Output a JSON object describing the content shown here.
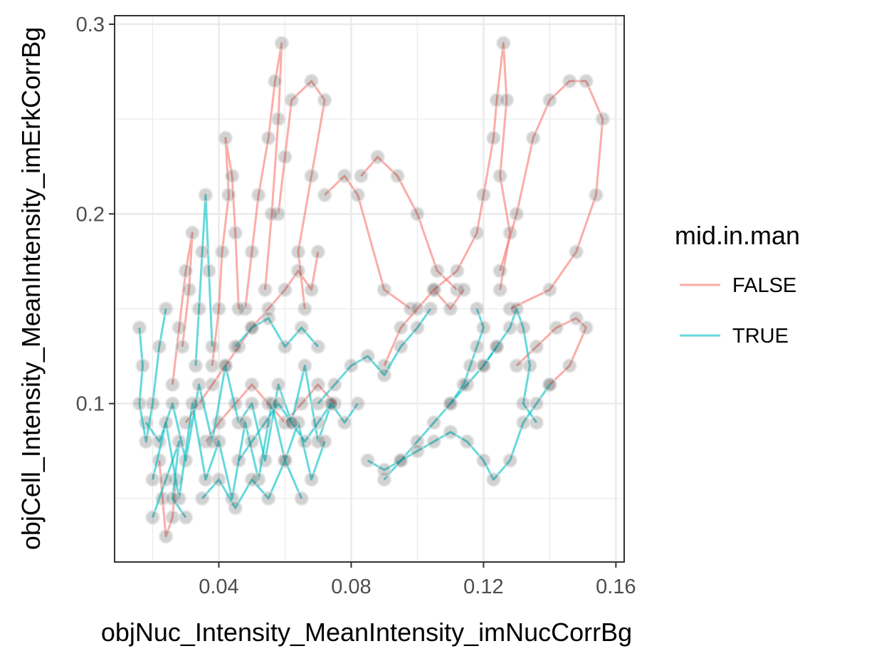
{
  "chart_data": {
    "type": "line",
    "title": "",
    "xlabel": "objNuc_Intensity_MeanIntensity_imNucCorrBg",
    "ylabel": "objCell_Intensity_MeanIntensity_imErkCorrBg",
    "xlim": [
      0.0085,
      0.1625
    ],
    "ylim": [
      0.0165,
      0.3045
    ],
    "x_ticks": [
      0.04,
      0.08,
      0.12,
      0.16
    ],
    "x_tick_labels": [
      "0.04",
      "0.08",
      "0.12",
      "0.16"
    ],
    "y_ticks": [
      0.1,
      0.2,
      0.3
    ],
    "y_tick_labels": [
      "0.1",
      "0.2",
      "0.3"
    ],
    "grid": true,
    "legend": {
      "title": "mid.in.man",
      "position": "right"
    },
    "series": [
      {
        "name": "FALSE",
        "color": "#F8766D",
        "tracks": [
          [
            [
              0.072,
              0.21
            ],
            [
              0.078,
              0.22
            ],
            [
              0.082,
              0.21
            ],
            [
              0.09,
              0.16
            ],
            [
              0.098,
              0.15
            ]
          ],
          [
            [
              0.083,
              0.22
            ],
            [
              0.088,
              0.23
            ],
            [
              0.094,
              0.22
            ],
            [
              0.1,
              0.2
            ],
            [
              0.106,
              0.17
            ],
            [
              0.112,
              0.16
            ]
          ],
          [
            [
              0.105,
              0.16
            ],
            [
              0.112,
              0.17
            ],
            [
              0.118,
              0.19
            ],
            [
              0.12,
              0.21
            ],
            [
              0.123,
              0.24
            ],
            [
              0.124,
              0.26
            ],
            [
              0.126,
              0.29
            ],
            [
              0.127,
              0.26
            ],
            [
              0.125,
              0.22
            ],
            [
              0.128,
              0.19
            ],
            [
              0.125,
              0.16
            ]
          ],
          [
            [
              0.125,
              0.17
            ],
            [
              0.13,
              0.2
            ],
            [
              0.135,
              0.24
            ],
            [
              0.14,
              0.26
            ],
            [
              0.146,
              0.27
            ],
            [
              0.151,
              0.27
            ],
            [
              0.156,
              0.25
            ],
            [
              0.154,
              0.21
            ],
            [
              0.148,
              0.18
            ],
            [
              0.14,
              0.16
            ],
            [
              0.128,
              0.15
            ]
          ],
          [
            [
              0.13,
              0.12
            ],
            [
              0.136,
              0.13
            ],
            [
              0.142,
              0.14
            ],
            [
              0.148,
              0.145
            ],
            [
              0.151,
              0.14
            ],
            [
              0.146,
              0.12
            ],
            [
              0.14,
              0.11
            ]
          ],
          [
            [
              0.058,
              0.2
            ],
            [
              0.06,
              0.23
            ],
            [
              0.062,
              0.26
            ],
            [
              0.068,
              0.27
            ],
            [
              0.072,
              0.26
            ],
            [
              0.068,
              0.22
            ],
            [
              0.064,
              0.18
            ],
            [
              0.066,
              0.15
            ]
          ],
          [
            [
              0.048,
              0.15
            ],
            [
              0.05,
              0.18
            ],
            [
              0.052,
              0.21
            ],
            [
              0.055,
              0.24
            ],
            [
              0.057,
              0.27
            ],
            [
              0.059,
              0.29
            ],
            [
              0.058,
              0.25
            ],
            [
              0.056,
              0.2
            ],
            [
              0.054,
              0.16
            ]
          ],
          [
            [
              0.038,
              0.12
            ],
            [
              0.04,
              0.15
            ],
            [
              0.041,
              0.18
            ],
            [
              0.043,
              0.21
            ],
            [
              0.042,
              0.24
            ],
            [
              0.044,
              0.22
            ],
            [
              0.045,
              0.19
            ],
            [
              0.046,
              0.15
            ]
          ],
          [
            [
              0.026,
              0.11
            ],
            [
              0.028,
              0.14
            ],
            [
              0.03,
              0.17
            ],
            [
              0.032,
              0.19
            ],
            [
              0.031,
              0.16
            ],
            [
              0.029,
              0.13
            ]
          ],
          [
            [
              0.022,
              0.07
            ],
            [
              0.023,
              0.05
            ],
            [
              0.024,
              0.03
            ],
            [
              0.026,
              0.04
            ],
            [
              0.027,
              0.06
            ]
          ],
          [
            [
              0.03,
              0.09
            ],
            [
              0.034,
              0.1
            ],
            [
              0.038,
              0.11
            ],
            [
              0.042,
              0.12
            ],
            [
              0.046,
              0.13
            ],
            [
              0.05,
              0.14
            ],
            [
              0.055,
              0.15
            ],
            [
              0.06,
              0.16
            ],
            [
              0.064,
              0.17
            ],
            [
              0.068,
              0.16
            ],
            [
              0.07,
              0.18
            ]
          ],
          [
            [
              0.09,
              0.12
            ],
            [
              0.095,
              0.14
            ],
            [
              0.1,
              0.15
            ],
            [
              0.105,
              0.16
            ],
            [
              0.11,
              0.15
            ],
            [
              0.114,
              0.16
            ]
          ],
          [
            [
              0.036,
              0.08
            ],
            [
              0.04,
              0.09
            ],
            [
              0.045,
              0.1
            ],
            [
              0.05,
              0.11
            ],
            [
              0.055,
              0.1
            ],
            [
              0.06,
              0.09
            ],
            [
              0.065,
              0.1
            ],
            [
              0.07,
              0.11
            ],
            [
              0.075,
              0.1
            ]
          ]
        ]
      },
      {
        "name": "TRUE",
        "color": "#00BFC4",
        "tracks": [
          [
            [
              0.018,
              0.09
            ],
            [
              0.022,
              0.08
            ],
            [
              0.026,
              0.1
            ],
            [
              0.03,
              0.07
            ],
            [
              0.034,
              0.11
            ],
            [
              0.038,
              0.08
            ],
            [
              0.042,
              0.12
            ],
            [
              0.046,
              0.09
            ],
            [
              0.05,
              0.1
            ],
            [
              0.054,
              0.07
            ],
            [
              0.058,
              0.11
            ],
            [
              0.062,
              0.09
            ],
            [
              0.066,
              0.12
            ],
            [
              0.07,
              0.08
            ],
            [
              0.074,
              0.1
            ]
          ],
          [
            [
              0.02,
              0.06
            ],
            [
              0.024,
              0.09
            ],
            [
              0.028,
              0.05
            ],
            [
              0.032,
              0.1
            ],
            [
              0.036,
              0.06
            ],
            [
              0.04,
              0.08
            ],
            [
              0.044,
              0.05
            ],
            [
              0.048,
              0.09
            ],
            [
              0.052,
              0.06
            ],
            [
              0.056,
              0.1
            ],
            [
              0.06,
              0.07
            ],
            [
              0.064,
              0.09
            ],
            [
              0.068,
              0.06
            ],
            [
              0.072,
              0.08
            ]
          ],
          [
            [
              0.016,
              0.14
            ],
            [
              0.017,
              0.12
            ],
            [
              0.016,
              0.1
            ],
            [
              0.018,
              0.08
            ],
            [
              0.02,
              0.1
            ],
            [
              0.022,
              0.13
            ],
            [
              0.024,
              0.15
            ]
          ],
          [
            [
              0.033,
              0.12
            ],
            [
              0.034,
              0.15
            ],
            [
              0.035,
              0.18
            ],
            [
              0.036,
              0.21
            ],
            [
              0.037,
              0.17
            ],
            [
              0.038,
              0.13
            ]
          ],
          [
            [
              0.02,
              0.04
            ],
            [
              0.024,
              0.06
            ],
            [
              0.028,
              0.08
            ],
            [
              0.026,
              0.05
            ],
            [
              0.03,
              0.04
            ]
          ],
          [
            [
              0.035,
              0.05
            ],
            [
              0.04,
              0.06
            ],
            [
              0.045,
              0.045
            ],
            [
              0.05,
              0.06
            ],
            [
              0.055,
              0.05
            ],
            [
              0.06,
              0.07
            ],
            [
              0.065,
              0.05
            ]
          ],
          [
            [
              0.045,
              0.13
            ],
            [
              0.05,
              0.14
            ],
            [
              0.055,
              0.145
            ],
            [
              0.06,
              0.13
            ],
            [
              0.065,
              0.14
            ],
            [
              0.07,
              0.13
            ]
          ],
          [
            [
              0.07,
              0.1
            ],
            [
              0.075,
              0.11
            ],
            [
              0.08,
              0.12
            ],
            [
              0.085,
              0.125
            ],
            [
              0.09,
              0.115
            ],
            [
              0.095,
              0.13
            ],
            [
              0.1,
              0.14
            ],
            [
              0.104,
              0.15
            ]
          ],
          [
            [
              0.09,
              0.06
            ],
            [
              0.095,
              0.07
            ],
            [
              0.1,
              0.08
            ],
            [
              0.105,
              0.09
            ],
            [
              0.11,
              0.1
            ],
            [
              0.115,
              0.11
            ],
            [
              0.12,
              0.12
            ],
            [
              0.124,
              0.13
            ]
          ],
          [
            [
              0.085,
              0.07
            ],
            [
              0.09,
              0.065
            ],
            [
              0.095,
              0.07
            ],
            [
              0.1,
              0.075
            ],
            [
              0.105,
              0.08
            ],
            [
              0.11,
              0.085
            ],
            [
              0.115,
              0.08
            ],
            [
              0.12,
              0.07
            ],
            [
              0.123,
              0.06
            ],
            [
              0.128,
              0.07
            ],
            [
              0.132,
              0.09
            ],
            [
              0.136,
              0.1
            ],
            [
              0.14,
              0.11
            ]
          ],
          [
            [
              0.12,
              0.12
            ],
            [
              0.124,
              0.13
            ],
            [
              0.128,
              0.14
            ],
            [
              0.13,
              0.15
            ],
            [
              0.132,
              0.14
            ],
            [
              0.134,
              0.12
            ],
            [
              0.132,
              0.1
            ],
            [
              0.136,
              0.09
            ]
          ],
          [
            [
              0.11,
              0.1
            ],
            [
              0.114,
              0.11
            ],
            [
              0.116,
              0.12
            ],
            [
              0.118,
              0.13
            ],
            [
              0.12,
              0.14
            ],
            [
              0.118,
              0.15
            ]
          ],
          [
            [
              0.046,
              0.07
            ],
            [
              0.05,
              0.08
            ],
            [
              0.054,
              0.09
            ],
            [
              0.058,
              0.1
            ],
            [
              0.062,
              0.09
            ],
            [
              0.066,
              0.08
            ],
            [
              0.07,
              0.09
            ],
            [
              0.074,
              0.1
            ],
            [
              0.078,
              0.09
            ],
            [
              0.082,
              0.1
            ]
          ]
        ]
      }
    ]
  }
}
